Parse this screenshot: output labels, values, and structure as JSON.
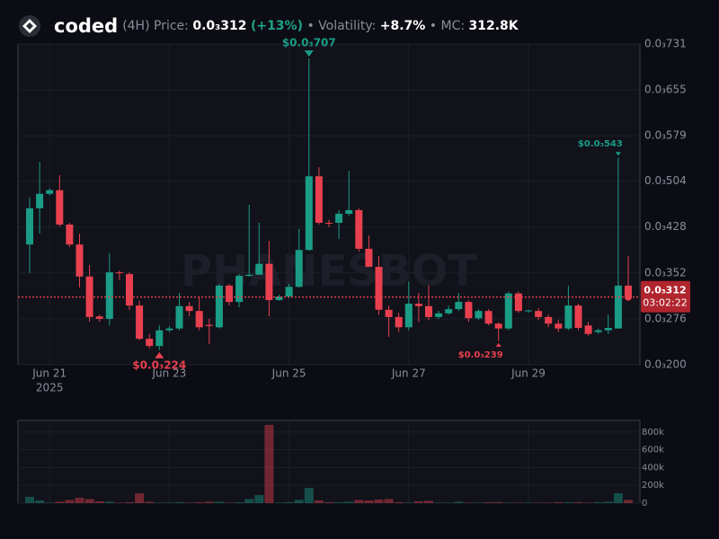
{
  "header": {
    "name": "coded",
    "interval": "(4H)",
    "price_label": "Price:",
    "price": "0.0₃312",
    "change": "(+13%)",
    "volatility_label": "• Volatility:",
    "volatility": "+8.7%",
    "mc_label": "• MC:",
    "mc": "312.8K"
  },
  "chart_data": {
    "type": "candlestick",
    "categories": [
      null,
      null,
      "Jun 21",
      null,
      null,
      null,
      null,
      null,
      null,
      null,
      null,
      null,
      null,
      null,
      "Jun 23",
      null,
      null,
      null,
      null,
      null,
      null,
      null,
      null,
      null,
      null,
      null,
      "Jun 25",
      null,
      null,
      null,
      null,
      null,
      null,
      null,
      null,
      null,
      null,
      null,
      "Jun 27",
      null,
      null,
      null,
      null,
      null,
      null,
      null,
      null,
      null,
      null,
      null,
      "Jun 29",
      null,
      null,
      null,
      null,
      null,
      null,
      null,
      null,
      null,
      null
    ],
    "year_label": "2025",
    "open": [
      0.000399,
      0.000459,
      0.000483,
      0.000489,
      0.000432,
      0.000399,
      0.000346,
      0.00028,
      0.000276,
      0.000353,
      0.00035,
      0.000298,
      0.000243,
      0.000231,
      0.000257,
      0.00026,
      0.000297,
      0.000289,
      0.000266,
      0.000262,
      0.000331,
      0.000304,
      0.000347,
      0.000349,
      0.000367,
      0.000307,
      0.000313,
      0.000329,
      0.00039,
      0.000512,
      0.000435,
      0.000435,
      0.00045,
      0.000456,
      0.000392,
      0.000362,
      0.000291,
      0.000279,
      0.000262,
      0.000301,
      0.000297,
      0.000279,
      0.000285,
      0.000292,
      0.000304,
      0.000277,
      0.000289,
      0.000268,
      0.00026,
      0.000318,
      0.000289,
      0.000289,
      0.000279,
      0.000268,
      0.00026,
      0.000298,
      0.000265,
      0.000254,
      0.000257,
      0.00026,
      0.000331
    ],
    "high": [
      0.000477,
      0.000536,
      0.000492,
      0.000514,
      0.000435,
      0.000417,
      0.000365,
      0.000283,
      0.000385,
      0.000356,
      0.000353,
      0.000306,
      0.000251,
      0.000265,
      0.000264,
      0.000319,
      0.000304,
      0.000313,
      0.000276,
      0.000334,
      0.000334,
      0.00035,
      0.000465,
      0.000435,
      0.000405,
      0.000316,
      0.000334,
      0.000425,
      0.000707,
      0.000527,
      0.00044,
      0.000456,
      0.000521,
      0.000459,
      0.000414,
      0.00038,
      0.000298,
      0.000286,
      0.000338,
      0.000319,
      0.000331,
      0.000289,
      0.000298,
      0.000319,
      0.000307,
      0.000292,
      0.000292,
      0.00027,
      0.000321,
      0.000321,
      0.000291,
      0.000294,
      0.000283,
      0.000274,
      0.000331,
      0.000301,
      0.000271,
      0.00026,
      0.000283,
      0.000543,
      0.00038
    ],
    "low": [
      0.000352,
      0.000417,
      0.00048,
      0.000429,
      0.000395,
      0.000328,
      0.000271,
      0.000271,
      0.000265,
      0.00034,
      0.000291,
      0.00024,
      0.000227,
      0.000224,
      0.000254,
      0.000257,
      0.00028,
      0.000257,
      0.000234,
      0.00026,
      0.000298,
      0.000295,
      0.000346,
      0.00035,
      0.00028,
      0.000306,
      0.00031,
      0.000328,
      0.000389,
      0.000432,
      0.000428,
      0.000408,
      0.000447,
      0.000387,
      0.000362,
      0.000283,
      0.000246,
      0.000254,
      0.000257,
      0.000271,
      0.000274,
      0.000276,
      0.000283,
      0.000289,
      0.000271,
      0.000274,
      0.000265,
      0.000239,
      0.000257,
      0.000286,
      0.000286,
      0.000274,
      0.000262,
      0.000254,
      0.000257,
      0.000257,
      0.000248,
      0.000251,
      0.000251,
      0.00026,
      0.000307
    ],
    "close": [
      0.000459,
      0.000483,
      0.000489,
      0.000432,
      0.000399,
      0.000346,
      0.000279,
      0.000276,
      0.000353,
      0.000352,
      0.000298,
      0.000243,
      0.000231,
      0.000257,
      0.00026,
      0.000297,
      0.000289,
      0.000262,
      0.000264,
      0.000331,
      0.000304,
      0.000347,
      0.000349,
      0.000367,
      0.000307,
      0.000313,
      0.000329,
      0.00039,
      0.000512,
      0.000435,
      0.000434,
      0.00045,
      0.000456,
      0.000392,
      0.000362,
      0.000291,
      0.000279,
      0.000262,
      0.000301,
      0.000297,
      0.000279,
      0.000285,
      0.000292,
      0.000304,
      0.000277,
      0.000289,
      0.000268,
      0.00026,
      0.000318,
      0.000289,
      0.00029,
      0.000279,
      0.000268,
      0.00026,
      0.000298,
      0.000261,
      0.000251,
      0.000257,
      0.000261,
      0.000331,
      0.000312
    ],
    "up_color": "#1a9c86",
    "down_color": "#e8404f",
    "ylim": [
      0.0002,
      0.000731
    ],
    "yticks": [
      {
        "value": 0.0002,
        "label": "0.0₃200"
      },
      {
        "value": 0.000276,
        "label": "0.0₃276"
      },
      {
        "value": 0.000352,
        "label": "0.0₃352"
      },
      {
        "value": 0.000428,
        "label": "0.0₃428"
      },
      {
        "value": 0.000504,
        "label": "0.0₃504"
      },
      {
        "value": 0.000579,
        "label": "0.0₃579"
      },
      {
        "value": 0.000655,
        "label": "0.0₃655"
      },
      {
        "value": 0.000731,
        "label": "0.0₃731"
      }
    ],
    "grid": true,
    "last_price": {
      "value": 0.000312,
      "label": "0.0₃312",
      "countdown": "03:02:22"
    },
    "annotations": [
      {
        "kind": "high",
        "value": 0.000707,
        "label": "$0.0₃707",
        "style": "major"
      },
      {
        "kind": "low",
        "value": 0.000224,
        "label": "$0.0₃224",
        "style": "major"
      },
      {
        "kind": "high",
        "value": 0.000543,
        "label": "$0.0₃543",
        "style": "minor"
      },
      {
        "kind": "low",
        "value": 0.000239,
        "label": "$0.0₃239",
        "style": "minor"
      }
    ],
    "watermark": "PHANESBOT",
    "volume": {
      "values": [
        70000,
        30000,
        5000,
        15000,
        35000,
        60000,
        45000,
        20000,
        15000,
        5000,
        10000,
        110000,
        15000,
        5000,
        5000,
        10000,
        5000,
        10000,
        15000,
        15000,
        5000,
        10000,
        45000,
        90000,
        880000,
        5000,
        10000,
        35000,
        170000,
        30000,
        10000,
        10000,
        15000,
        35000,
        30000,
        40000,
        45000,
        10000,
        5000,
        20000,
        25000,
        5000,
        5000,
        15000,
        5000,
        5000,
        10000,
        10000,
        5000,
        5000,
        5000,
        5000,
        5000,
        10000,
        10000,
        10000,
        5000,
        10000,
        15000,
        110000,
        35000
      ],
      "ylim": [
        0,
        930000
      ],
      "yticks": [
        0,
        {
          "value": 200000,
          "label": "200k"
        },
        {
          "value": 400000,
          "label": "400k"
        },
        {
          "value": 600000,
          "label": "600k"
        },
        {
          "value": 800000,
          "label": "800k"
        }
      ]
    }
  }
}
